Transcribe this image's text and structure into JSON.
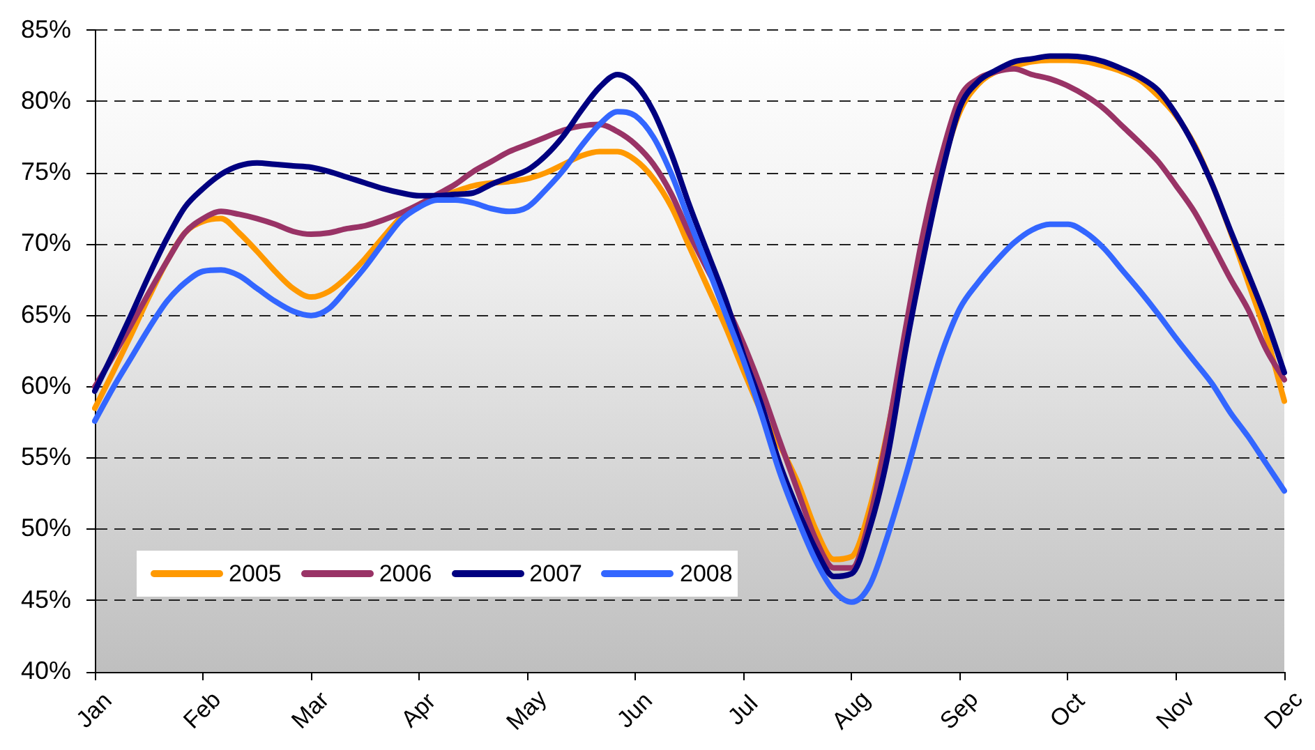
{
  "chart_data": {
    "type": "line",
    "categories": [
      "Jan",
      null,
      null,
      null,
      null,
      null,
      "Feb",
      null,
      null,
      null,
      null,
      null,
      "Mar",
      null,
      null,
      null,
      null,
      null,
      "Apr",
      null,
      null,
      null,
      null,
      null,
      "May",
      null,
      null,
      null,
      null,
      null,
      "Jun",
      null,
      null,
      null,
      null,
      null,
      "Jul",
      null,
      null,
      null,
      null,
      null,
      "Aug",
      null,
      null,
      null,
      null,
      null,
      "Sep",
      null,
      null,
      null,
      null,
      null,
      "Oct",
      null,
      null,
      null,
      null,
      null,
      "Nov",
      null,
      null,
      null,
      null,
      null,
      "Dec"
    ],
    "ylim": [
      40,
      85
    ],
    "yticks": [
      {
        "value": 40,
        "label": "40%"
      },
      {
        "value": 45,
        "label": "45%"
      },
      {
        "value": 50,
        "label": "50%"
      },
      {
        "value": 55,
        "label": "55%"
      },
      {
        "value": 60,
        "label": "60%"
      },
      {
        "value": 65,
        "label": "65%"
      },
      {
        "value": 70,
        "label": "70%"
      },
      {
        "value": 75,
        "label": "75%"
      },
      {
        "value": 80,
        "label": "80%"
      },
      {
        "value": 85,
        "label": "85%"
      }
    ],
    "grid": "y",
    "legend": "bottom left",
    "series": [
      {
        "name": "2005",
        "color": "#ff9900",
        "values": [
          58.5,
          61.0,
          63.6,
          66.3,
          68.8,
          70.8,
          71.6,
          71.8,
          70.8,
          69.5,
          68.1,
          66.9,
          66.3,
          66.7,
          67.7,
          69.0,
          70.5,
          71.9,
          72.8,
          73.3,
          73.7,
          74.1,
          74.3,
          74.4,
          74.6,
          75.0,
          75.6,
          76.2,
          76.5,
          76.5,
          75.9,
          74.6,
          72.6,
          69.8,
          67.0,
          64.2,
          61.1,
          58.2,
          55.9,
          53.3,
          50.0,
          47.9,
          48.1,
          51.5,
          57.0,
          63.7,
          70.4,
          75.4,
          79.3,
          81.2,
          82.1,
          82.5,
          82.8,
          82.9,
          82.9,
          82.8,
          82.5,
          82.1,
          81.5,
          80.4,
          79.0,
          77.0,
          74.2,
          70.9,
          67.3,
          63.6,
          59.0
        ]
      },
      {
        "name": "2006",
        "color": "#993366",
        "values": [
          60.0,
          62.1,
          64.3,
          66.6,
          68.8,
          70.8,
          71.8,
          72.3,
          72.1,
          71.8,
          71.4,
          70.9,
          70.7,
          70.8,
          71.1,
          71.3,
          71.7,
          72.2,
          72.8,
          73.5,
          74.2,
          75.1,
          75.8,
          76.5,
          77.0,
          77.5,
          78.0,
          78.3,
          78.4,
          77.9,
          77.0,
          75.6,
          73.5,
          70.7,
          68.2,
          65.8,
          63.0,
          59.8,
          56.2,
          52.7,
          49.3,
          47.3,
          47.3,
          50.8,
          56.9,
          64.2,
          71.0,
          76.3,
          80.3,
          81.6,
          82.1,
          82.3,
          81.9,
          81.6,
          81.1,
          80.4,
          79.5,
          78.3,
          77.1,
          75.8,
          74.1,
          72.3,
          70.0,
          67.6,
          65.4,
          62.6,
          60.5
        ]
      },
      {
        "name": "2007",
        "color": "#000080",
        "values": [
          59.7,
          62.3,
          65.0,
          67.8,
          70.4,
          72.6,
          73.9,
          74.9,
          75.5,
          75.7,
          75.6,
          75.5,
          75.4,
          75.1,
          74.7,
          74.3,
          73.9,
          73.6,
          73.4,
          73.4,
          73.5,
          73.6,
          74.2,
          74.7,
          75.2,
          76.2,
          77.6,
          79.4,
          81.0,
          81.9,
          81.2,
          79.3,
          76.3,
          72.7,
          69.4,
          66.1,
          62.2,
          58.7,
          54.6,
          51.4,
          48.6,
          46.7,
          46.9,
          50.1,
          55.2,
          62.7,
          69.2,
          75.0,
          79.6,
          81.4,
          82.2,
          82.8,
          83.0,
          83.2,
          83.2,
          83.1,
          82.8,
          82.3,
          81.7,
          80.8,
          79.1,
          76.9,
          74.2,
          71.0,
          67.9,
          64.7,
          61.0
        ]
      },
      {
        "name": "2008",
        "color": "#3366ff",
        "values": [
          57.6,
          59.9,
          62.0,
          64.1,
          66.0,
          67.3,
          68.1,
          68.2,
          67.8,
          66.9,
          66.0,
          65.3,
          65.0,
          65.5,
          66.9,
          68.4,
          70.1,
          71.7,
          72.6,
          73.1,
          73.1,
          72.9,
          72.5,
          72.3,
          72.6,
          73.8,
          75.2,
          76.9,
          78.4,
          79.3,
          79.0,
          77.5,
          74.9,
          71.6,
          68.4,
          65.1,
          61.8,
          58.0,
          54.0,
          50.7,
          47.8,
          45.7,
          44.9,
          46.1,
          49.6,
          53.8,
          58.3,
          62.4,
          65.5,
          67.3,
          68.8,
          70.1,
          71.0,
          71.4,
          71.4,
          70.8,
          69.7,
          68.2,
          66.7,
          65.1,
          63.4,
          61.8,
          60.2,
          58.2,
          56.5,
          54.6,
          52.7
        ]
      }
    ]
  }
}
